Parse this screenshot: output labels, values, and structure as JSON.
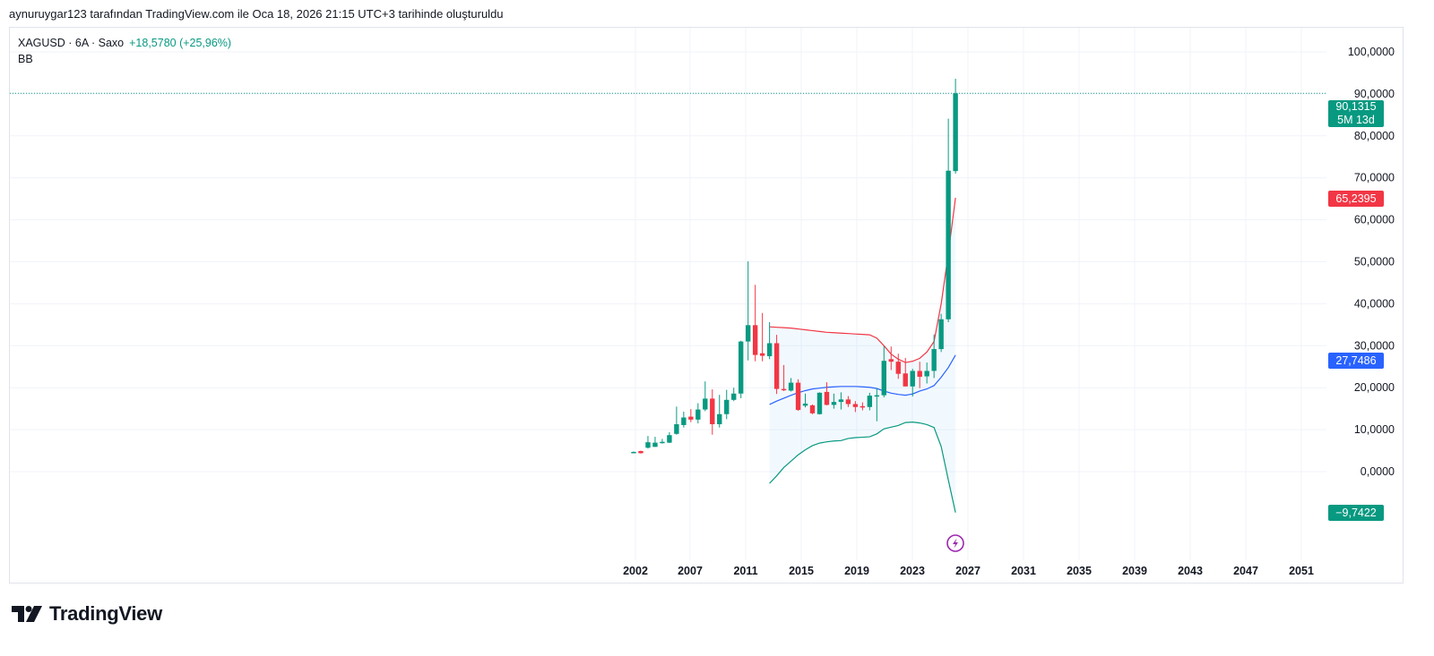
{
  "credit": "aynuruygar123 tarafından TradingView.com ile Oca 18, 2026 21:15 UTC+3 tarihinde oluşturuldu",
  "legend": {
    "symbol": "XAGUSD · 6A · Saxo",
    "change": "+18,5780 (+25,96%)",
    "indicator": "BB"
  },
  "badges": {
    "last_price": "90,1315",
    "countdown": "5M 13d",
    "upper": "65,2395",
    "basis": "27,7486",
    "lower": "−9,7422"
  },
  "colors": {
    "up": "#089981",
    "down": "#f23645",
    "upper": "#f23645",
    "basis": "#2962ff",
    "lower": "#089981",
    "fill": "#2196f3",
    "event": "#9c27b0"
  },
  "logo": {
    "text": "TradingView"
  },
  "chart_data": {
    "type": "candlestick",
    "title": "XAGUSD · 6A · Saxo",
    "interval": "6 months",
    "ylim": [
      -20,
      100
    ],
    "yticks": [
      "100,0000",
      "90,0000",
      "80,0000",
      "70,0000",
      "60,0000",
      "50,0000",
      "40,0000",
      "30,0000",
      "20,0000",
      "10,0000",
      "0,0000"
    ],
    "ytick_values": [
      100,
      90,
      80,
      70,
      60,
      50,
      40,
      30,
      20,
      10,
      0
    ],
    "xticks": [
      "2002",
      "2007",
      "2011",
      "2015",
      "2019",
      "2023",
      "2027",
      "2031",
      "2035",
      "2039",
      "2043",
      "2047",
      "2051"
    ],
    "grid": true,
    "candles": [
      [
        4.5,
        4.8,
        4.4,
        4.7
      ],
      [
        4.9,
        5.0,
        4.3,
        4.4
      ],
      [
        5.7,
        8.5,
        5.5,
        7.0
      ],
      [
        5.9,
        8.3,
        5.9,
        6.9
      ],
      [
        6.8,
        7.8,
        6.7,
        7.1
      ],
      [
        6.9,
        9.4,
        6.8,
        8.7
      ],
      [
        9.0,
        15.5,
        8.8,
        11.3
      ],
      [
        11.1,
        14.3,
        10.5,
        12.9
      ],
      [
        13.1,
        14.9,
        11.8,
        12.4
      ],
      [
        12.4,
        16.3,
        11.5,
        14.8
      ],
      [
        14.8,
        21.5,
        14.4,
        17.4
      ],
      [
        17.4,
        19.6,
        8.8,
        11.3
      ],
      [
        11.3,
        18.3,
        10.5,
        13.7
      ],
      [
        13.7,
        19.5,
        12.5,
        17.1
      ],
      [
        17.1,
        20.0,
        16.8,
        18.6
      ],
      [
        18.6,
        31.2,
        17.5,
        31.0
      ],
      [
        31.0,
        50.1,
        26.5,
        34.9
      ],
      [
        34.9,
        44.5,
        26.3,
        27.8
      ],
      [
        28.2,
        37.8,
        26.3,
        27.6
      ],
      [
        27.5,
        35.6,
        26.8,
        30.6
      ],
      [
        30.6,
        32.6,
        18.5,
        19.7
      ],
      [
        19.7,
        25.4,
        19.2,
        19.4
      ],
      [
        19.3,
        22.3,
        19.1,
        21.2
      ],
      [
        21.2,
        22.0,
        14.5,
        14.7
      ],
      [
        15.7,
        18.6,
        15.3,
        16.2
      ],
      [
        15.8,
        16.0,
        13.7,
        13.9
      ],
      [
        13.7,
        18.9,
        13.6,
        18.8
      ],
      [
        19.0,
        21.3,
        15.8,
        15.9
      ],
      [
        15.9,
        18.6,
        15.0,
        16.6
      ],
      [
        16.6,
        18.9,
        14.8,
        17.2
      ],
      [
        17.2,
        18.0,
        15.4,
        16.1
      ],
      [
        16.1,
        16.8,
        14.2,
        15.4
      ],
      [
        15.6,
        16.5,
        14.6,
        15.4
      ],
      [
        15.4,
        18.8,
        14.6,
        18.1
      ],
      [
        17.9,
        19.9,
        12.0,
        18.2
      ],
      [
        18.2,
        29.9,
        17.7,
        26.4
      ],
      [
        26.8,
        29.8,
        24.2,
        26.2
      ],
      [
        26.2,
        28.1,
        22.1,
        23.3
      ],
      [
        23.4,
        27.1,
        20.3,
        20.3
      ],
      [
        20.3,
        24.5,
        17.9,
        24.0
      ],
      [
        24.0,
        26.2,
        19.9,
        22.6
      ],
      [
        22.7,
        26.0,
        21.0,
        24.0
      ],
      [
        24.0,
        32.7,
        22.3,
        29.2
      ],
      [
        29.2,
        37.6,
        28.5,
        36.3
      ],
      [
        36.3,
        84.1,
        35.6,
        71.7
      ],
      [
        71.6,
        93.6,
        71.0,
        90.1315
      ]
    ],
    "bb_start_index": 19,
    "bb_upper": [
      34.5,
      34.4,
      34.3,
      34.2,
      34.0,
      33.8,
      33.6,
      33.4,
      33.2,
      33.1,
      33.0,
      32.9,
      32.8,
      32.7,
      32.6,
      31.8,
      30.0,
      28.0,
      26.8,
      26.0,
      26.3,
      27.0,
      28.5,
      31.0,
      40.0,
      52.0,
      65.2395
    ],
    "bb_basis": [
      16.0,
      16.8,
      17.5,
      18.2,
      18.8,
      19.3,
      19.7,
      19.9,
      20.1,
      20.2,
      20.3,
      20.3,
      20.3,
      20.2,
      20.1,
      19.8,
      19.2,
      18.7,
      18.4,
      18.2,
      18.5,
      19.2,
      19.7,
      20.5,
      22.5,
      24.8,
      27.7486
    ],
    "bb_lower": [
      -2.8,
      -1.0,
      1.0,
      2.5,
      4.0,
      5.2,
      6.2,
      6.8,
      7.1,
      7.3,
      7.4,
      7.9,
      8.1,
      8.2,
      8.3,
      9.0,
      10.2,
      10.6,
      11.0,
      11.7,
      11.8,
      11.6,
      11.2,
      10.5,
      6.0,
      -2.0,
      -9.7422
    ],
    "last_price": 90.1315
  }
}
